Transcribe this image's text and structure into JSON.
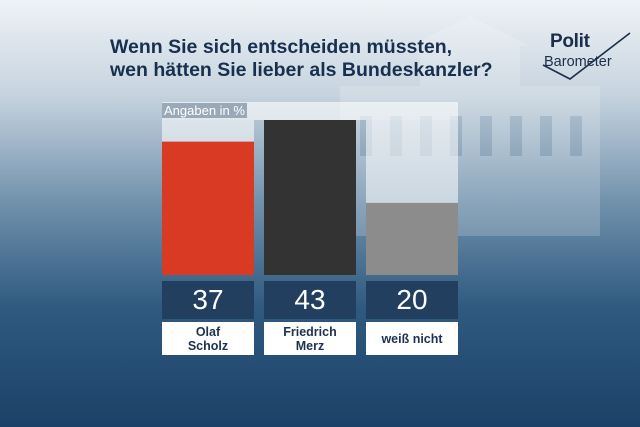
{
  "title_lines": [
    "Wenn Sie sich entscheiden müssten,",
    "wen hätten Sie lieber als Bundeskanzler?"
  ],
  "logo": {
    "top": "Polit",
    "bottom": "Barometer"
  },
  "unit_label": "Angaben in %",
  "colors": {
    "Olaf Scholz": "#d93a24",
    "Friedrich Merz": "#333333",
    "weiß nicht": "#8c8c8c"
  },
  "chart_data": {
    "type": "bar",
    "categories": [
      "Olaf\nScholz",
      "Friedrich\nMerz",
      "weiß nicht"
    ],
    "values": [
      37,
      43,
      20
    ],
    "ylim": [
      0,
      43
    ],
    "value_labels": [
      "37",
      "43",
      "20"
    ],
    "colors": [
      "#d93a24",
      "#333333",
      "#8c8c8c"
    ]
  }
}
